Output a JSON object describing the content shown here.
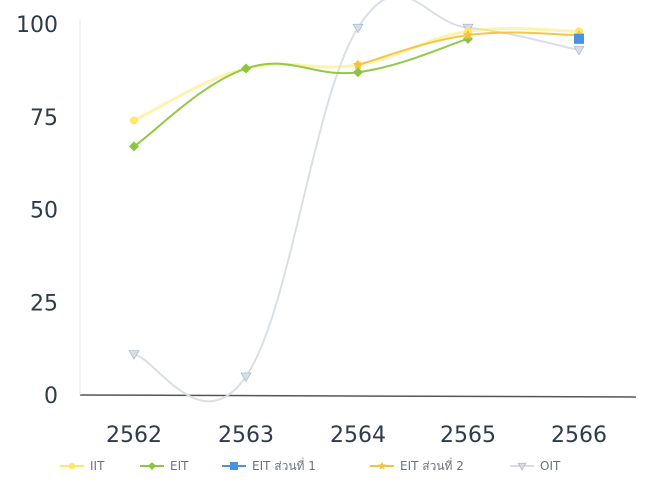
{
  "chart_data": {
    "type": "line",
    "categories": [
      "2562",
      "2563",
      "2564",
      "2565",
      "2566"
    ],
    "ylim": [
      0,
      100
    ],
    "yticks": [
      0,
      25,
      50,
      75,
      100
    ],
    "legend_position": "bottom",
    "grid": false,
    "series": [
      {
        "name": "IIT",
        "color": "#ffe866",
        "marker": "circle",
        "values": [
          74,
          88,
          89,
          98,
          98
        ]
      },
      {
        "name": "EIT",
        "color": "#8cc63f",
        "marker": "diamond",
        "values": [
          67,
          88,
          87,
          96,
          null
        ]
      },
      {
        "name": "EIT ส่วนที่ 1",
        "color": "#4a90e2",
        "marker": "square",
        "values": [
          null,
          null,
          null,
          null,
          96
        ]
      },
      {
        "name": "EIT ส่วนที่ 2",
        "color": "#f5c242",
        "marker": "star",
        "values": [
          null,
          null,
          89,
          97,
          97
        ]
      },
      {
        "name": "OIT",
        "color": "#d8dde3",
        "marker": "triangle-down",
        "values": [
          11,
          5,
          99,
          99,
          93
        ]
      }
    ]
  }
}
